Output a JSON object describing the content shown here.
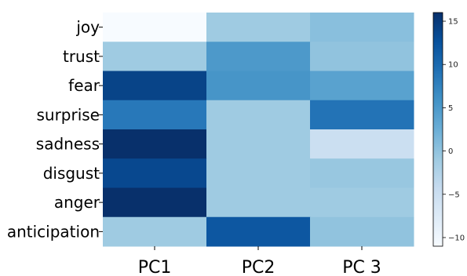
{
  "chart_data": {
    "type": "heatmap",
    "title": "",
    "xlabel": "",
    "ylabel": "",
    "rows": [
      "joy",
      "trust",
      "fear",
      "surprise",
      "sadness",
      "disgust",
      "anger",
      "anticipation"
    ],
    "columns": [
      "PC1",
      "PC2",
      "PC 3"
    ],
    "values": [
      [
        -11,
        -1,
        0.5
      ],
      [
        -1,
        5,
        0
      ],
      [
        14,
        5.5,
        4
      ],
      [
        8.5,
        -1,
        9
      ],
      [
        16,
        -1,
        -5
      ],
      [
        13.5,
        -1,
        -0.5
      ],
      [
        16,
        -1,
        -1
      ],
      [
        -1,
        12,
        0
      ]
    ],
    "colorbar": {
      "range": [
        -11,
        16
      ],
      "ticks": [
        15,
        10,
        5,
        0,
        -5,
        -10
      ],
      "tick_labels": [
        "15",
        "10",
        "5",
        "0",
        "−5",
        "−10"
      ]
    },
    "colormap": [
      "#f7fbff",
      "#deebf7",
      "#c6dbef",
      "#9ecae1",
      "#6baed6",
      "#4292c6",
      "#2171b5",
      "#08519c",
      "#08306b"
    ]
  }
}
